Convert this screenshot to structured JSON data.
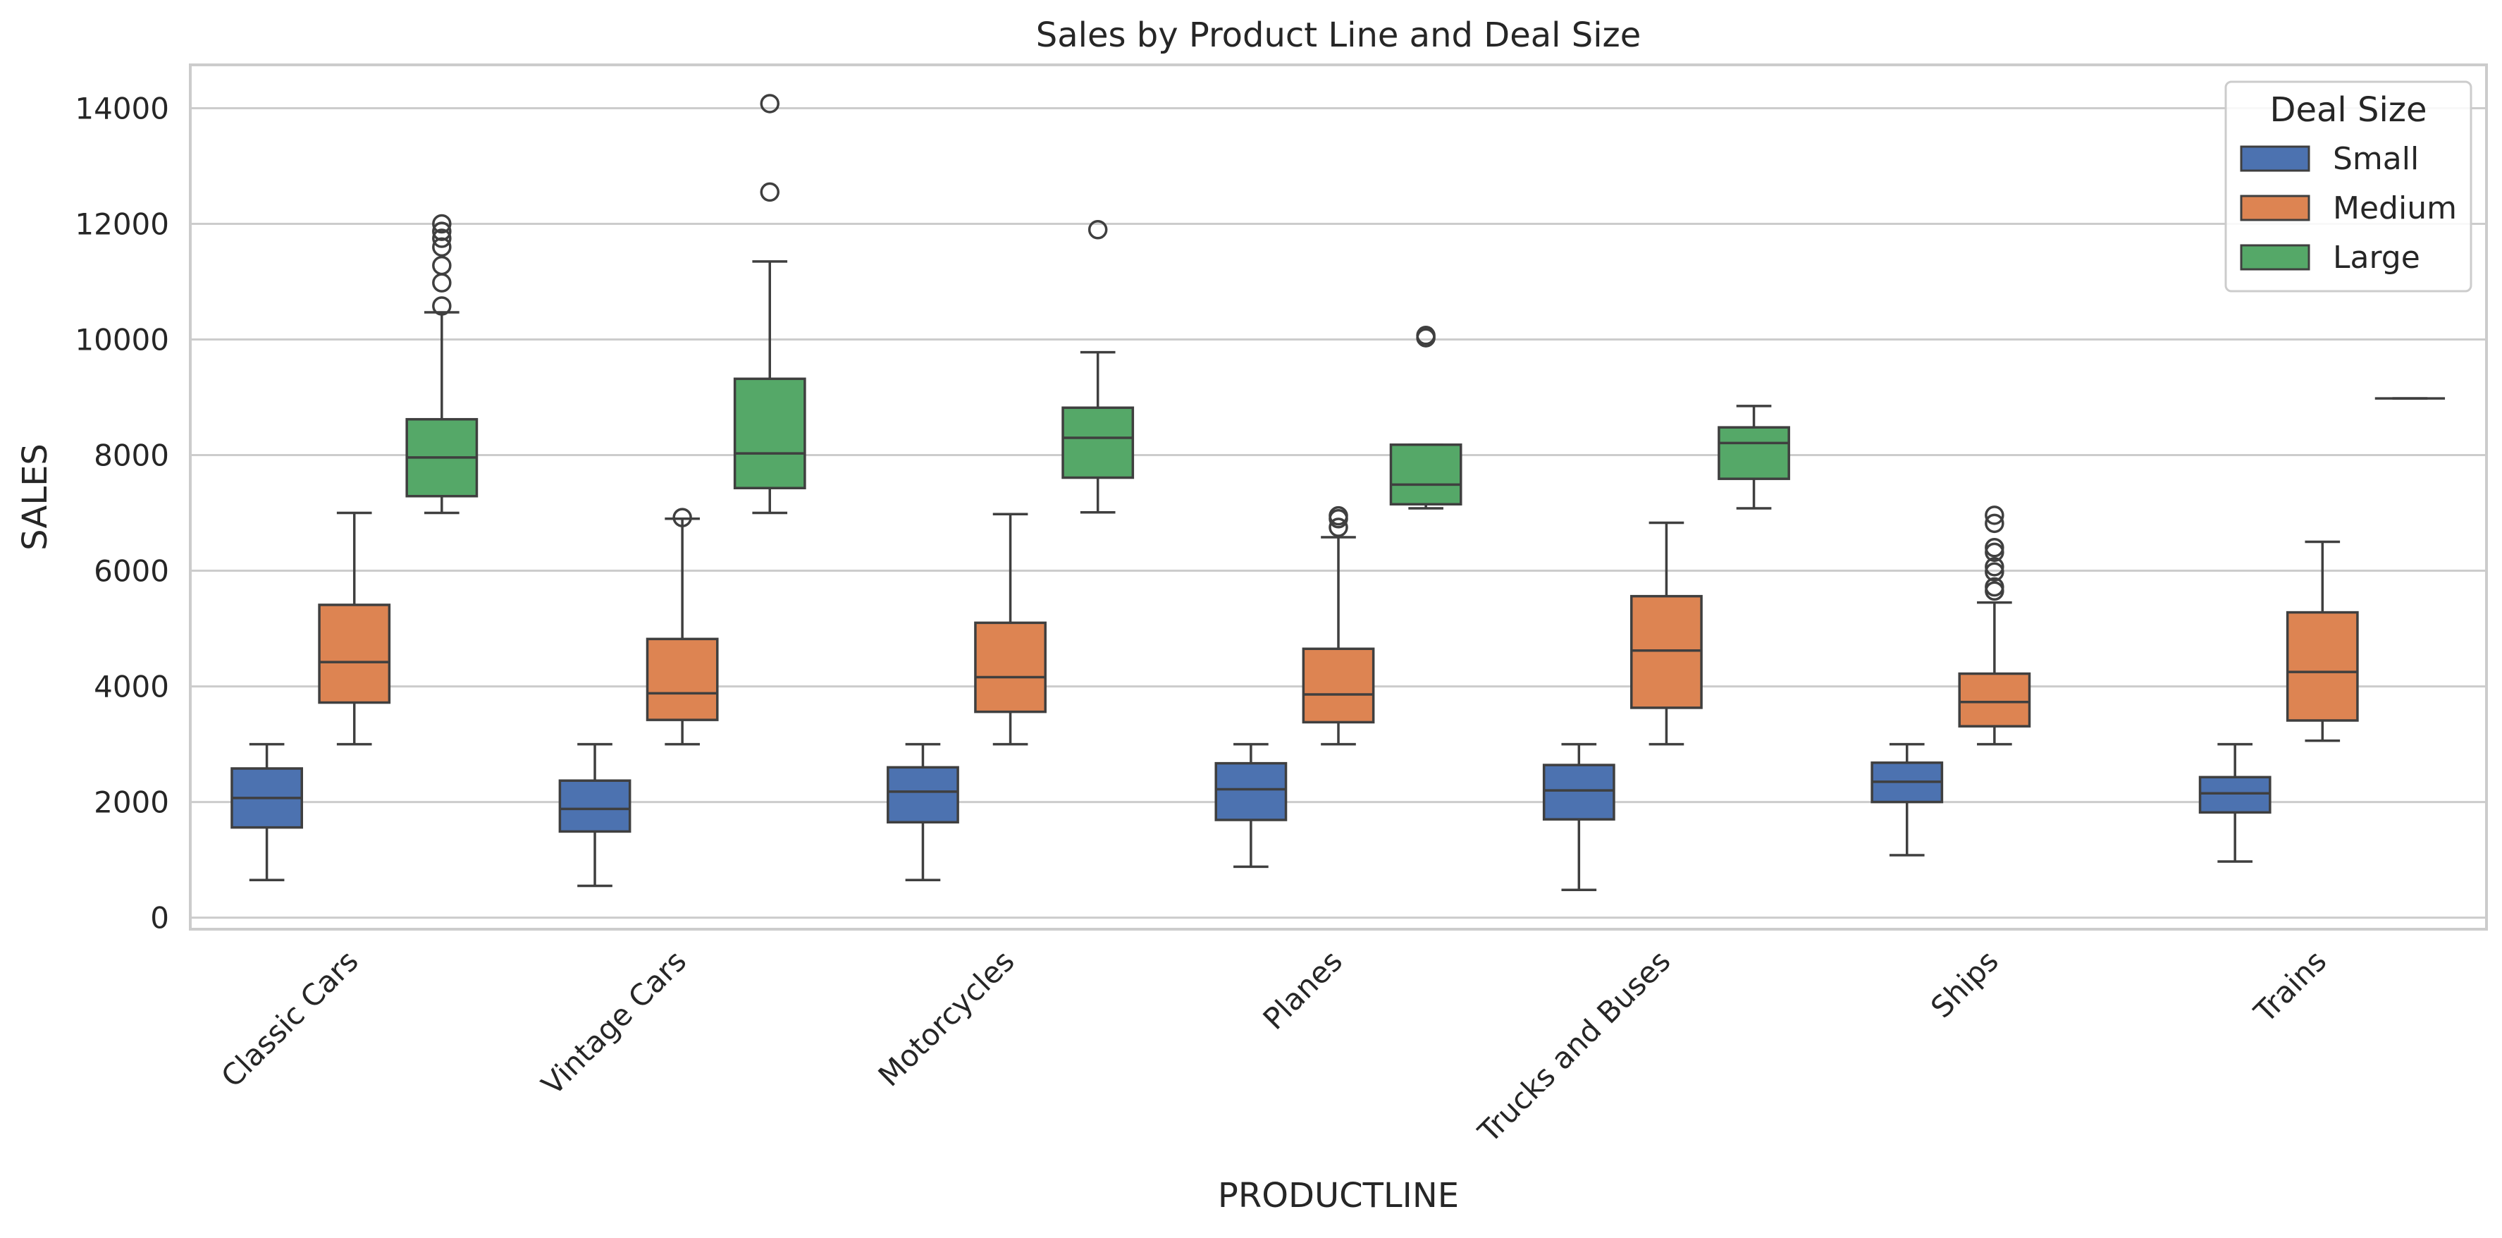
{
  "chart_data": {
    "type": "box",
    "title": "Sales by Product Line and Deal Size",
    "xlabel": "PRODUCTLINE",
    "ylabel": "SALES",
    "ylim": [
      -200,
      14750
    ],
    "yticks": [
      0,
      2000,
      4000,
      6000,
      8000,
      10000,
      12000,
      14000
    ],
    "grid": true,
    "legend_position": "top-right",
    "legend": {
      "title": "Deal Size"
    },
    "categories": [
      "Classic Cars",
      "Vintage Cars",
      "Motorcycles",
      "Planes",
      "Trucks and Buses",
      "Ships",
      "Trains"
    ],
    "series": [
      {
        "name": "Small",
        "color": "#4c72b0",
        "boxes": [
          {
            "whisker_low": 650,
            "q1": 1560,
            "median": 2070,
            "q3": 2580,
            "whisker_high": 3000,
            "outliers": []
          },
          {
            "whisker_low": 550,
            "q1": 1490,
            "median": 1880,
            "q3": 2370,
            "whisker_high": 3000,
            "outliers": []
          },
          {
            "whisker_low": 650,
            "q1": 1650,
            "median": 2180,
            "q3": 2600,
            "whisker_high": 3000,
            "outliers": []
          },
          {
            "whisker_low": 880,
            "q1": 1690,
            "median": 2220,
            "q3": 2670,
            "whisker_high": 3000,
            "outliers": []
          },
          {
            "whisker_low": 480,
            "q1": 1700,
            "median": 2200,
            "q3": 2640,
            "whisker_high": 3000,
            "outliers": []
          },
          {
            "whisker_low": 1080,
            "q1": 2000,
            "median": 2350,
            "q3": 2680,
            "whisker_high": 3000,
            "outliers": []
          },
          {
            "whisker_low": 970,
            "q1": 1820,
            "median": 2150,
            "q3": 2430,
            "whisker_high": 3000,
            "outliers": []
          }
        ]
      },
      {
        "name": "Medium",
        "color": "#dd8452",
        "boxes": [
          {
            "whisker_low": 3000,
            "q1": 3720,
            "median": 4420,
            "q3": 5410,
            "whisker_high": 7000,
            "outliers": []
          },
          {
            "whisker_low": 3000,
            "q1": 3420,
            "median": 3880,
            "q3": 4820,
            "whisker_high": 6900,
            "outliers": [
              6920
            ]
          },
          {
            "whisker_low": 3000,
            "q1": 3560,
            "median": 4160,
            "q3": 5100,
            "whisker_high": 6980,
            "outliers": []
          },
          {
            "whisker_low": 3000,
            "q1": 3380,
            "median": 3860,
            "q3": 4650,
            "whisker_high": 6580,
            "outliers": [
              6750,
              6900,
              6950
            ]
          },
          {
            "whisker_low": 3000,
            "q1": 3630,
            "median": 4620,
            "q3": 5560,
            "whisker_high": 6830,
            "outliers": []
          },
          {
            "whisker_low": 3000,
            "q1": 3310,
            "median": 3730,
            "q3": 4220,
            "whisker_high": 5450,
            "outliers": [
              5650,
              5720,
              5980,
              6070,
              6320,
              6400,
              6820,
              6960
            ]
          },
          {
            "whisker_low": 3060,
            "q1": 3410,
            "median": 4250,
            "q3": 5280,
            "whisker_high": 6500,
            "outliers": []
          }
        ]
      },
      {
        "name": "Large",
        "color": "#55a868",
        "boxes": [
          {
            "whisker_low": 7000,
            "q1": 7290,
            "median": 7960,
            "q3": 8620,
            "whisker_high": 10470,
            "outliers": [
              10580,
              10980,
              11280,
              11600,
              11750,
              11870,
              12000
            ]
          },
          {
            "whisker_low": 7000,
            "q1": 7430,
            "median": 8030,
            "q3": 9320,
            "whisker_high": 11350,
            "outliers": [
              12550,
              14080
            ]
          },
          {
            "whisker_low": 7010,
            "q1": 7610,
            "median": 8300,
            "q3": 8820,
            "whisker_high": 9780,
            "outliers": [
              11900
            ]
          },
          {
            "whisker_low": 7080,
            "q1": 7150,
            "median": 7490,
            "q3": 8180,
            "whisker_high": 8180,
            "outliers": [
              10030,
              10070
            ]
          },
          {
            "whisker_low": 7080,
            "q1": 7590,
            "median": 8210,
            "q3": 8480,
            "whisker_high": 8850,
            "outliers": []
          },
          null,
          {
            "whisker_low": 8980,
            "q1": 8980,
            "median": 8980,
            "q3": 8980,
            "whisker_high": 8980,
            "outliers": []
          }
        ]
      }
    ]
  }
}
